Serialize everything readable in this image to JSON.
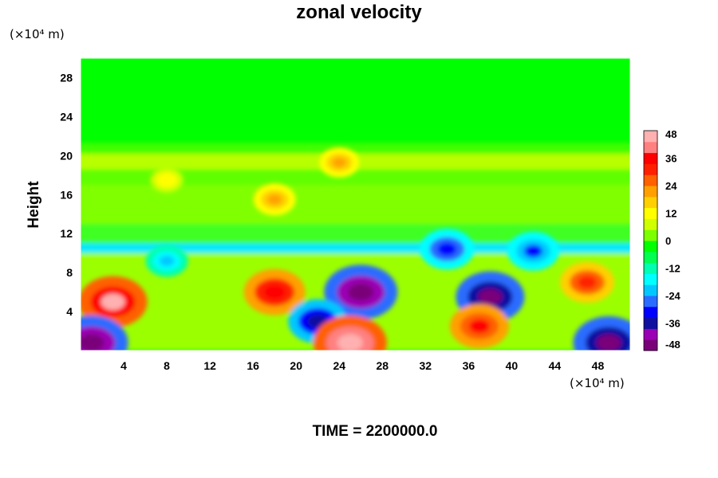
{
  "chart_data": {
    "type": "heatmap",
    "title": "zonal velocity",
    "ylabel": "Height",
    "y_unit": "(×10⁴ m)",
    "x_unit": "(×10⁴ m)",
    "footer": "TIME = 2200000.0",
    "xlim": [
      0,
      51
    ],
    "ylim": [
      0,
      30
    ],
    "xticks": [
      4,
      8,
      12,
      16,
      20,
      24,
      28,
      32,
      36,
      40,
      44,
      48
    ],
    "yticks": [
      4,
      8,
      12,
      16,
      20,
      24,
      28
    ],
    "colorbar": {
      "min": -48,
      "max": 48,
      "ticks": [
        48,
        36,
        24,
        12,
        0,
        -12,
        -24,
        -36,
        -48
      ],
      "colors": [
        "#7a007a",
        "#9b00b4",
        "#1010a0",
        "#0000ff",
        "#2a6cff",
        "#00c8ff",
        "#00ffff",
        "#00ffb0",
        "#00ff50",
        "#00ff00",
        "#7cff00",
        "#d0ff00",
        "#ffff00",
        "#ffd000",
        "#ffa000",
        "#ff6000",
        "#ff2000",
        "#ff0000",
        "#ff8080",
        "#ffb0b0"
      ]
    },
    "features": [
      {
        "x": 3,
        "y": 5,
        "value": 44
      },
      {
        "x": 18,
        "y": 6,
        "value": 38
      },
      {
        "x": 26,
        "y": 6,
        "value": -48
      },
      {
        "x": 22,
        "y": 3,
        "value": -36
      },
      {
        "x": 38,
        "y": 5.5,
        "value": -44
      },
      {
        "x": 37,
        "y": 2.5,
        "value": 36
      },
      {
        "x": 47,
        "y": 7,
        "value": 32
      },
      {
        "x": 25,
        "y": 0.8,
        "value": 48
      },
      {
        "x": 1,
        "y": 0.8,
        "value": -48
      },
      {
        "x": 49,
        "y": 0.8,
        "value": -46
      },
      {
        "x": 8,
        "y": 9.2,
        "value": -22
      },
      {
        "x": 34,
        "y": 10.4,
        "value": -32
      },
      {
        "x": 42,
        "y": 10.2,
        "value": -30
      },
      {
        "x": 24,
        "y": 19.3,
        "value": 20
      },
      {
        "x": 18,
        "y": 15.5,
        "value": 22
      },
      {
        "x": 8,
        "y": 17.5,
        "value": 14
      }
    ]
  }
}
